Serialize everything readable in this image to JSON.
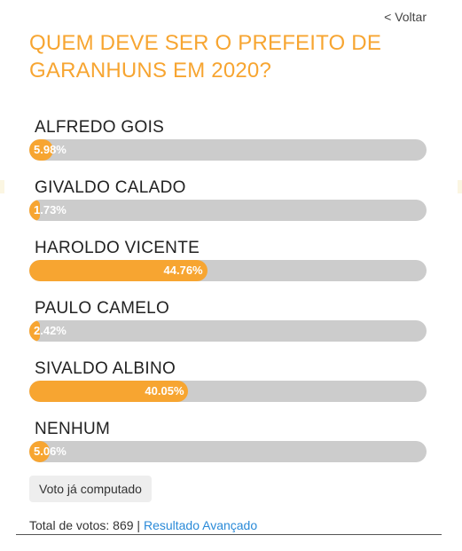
{
  "header": {
    "back_label": "< Voltar"
  },
  "poll": {
    "title": "QUEM DEVE SER O PREFEITO DE GARANHUNS EM 2020?",
    "options": [
      {
        "label": "ALFREDO GOIS",
        "percent_label": "5.98%",
        "percent": 5.98
      },
      {
        "label": "GIVALDO CALADO",
        "percent_label": "1.73%",
        "percent": 1.73
      },
      {
        "label": "HAROLDO VICENTE",
        "percent_label": "44.76%",
        "percent": 44.76
      },
      {
        "label": "PAULO CAMELO",
        "percent_label": "2.42%",
        "percent": 2.42
      },
      {
        "label": "SIVALDO ALBINO",
        "percent_label": "40.05%",
        "percent": 40.05
      },
      {
        "label": "NENHUM",
        "percent_label": "5.06%",
        "percent": 5.06
      }
    ]
  },
  "vote_button_label": "Voto já computado",
  "footer": {
    "total_label": "Total de votos: 869",
    "separator": " | ",
    "advanced_link": "Resultado Avançado"
  },
  "colors": {
    "accent": "#f7a531",
    "track": "#cccccc",
    "link": "#2a8ad8"
  }
}
